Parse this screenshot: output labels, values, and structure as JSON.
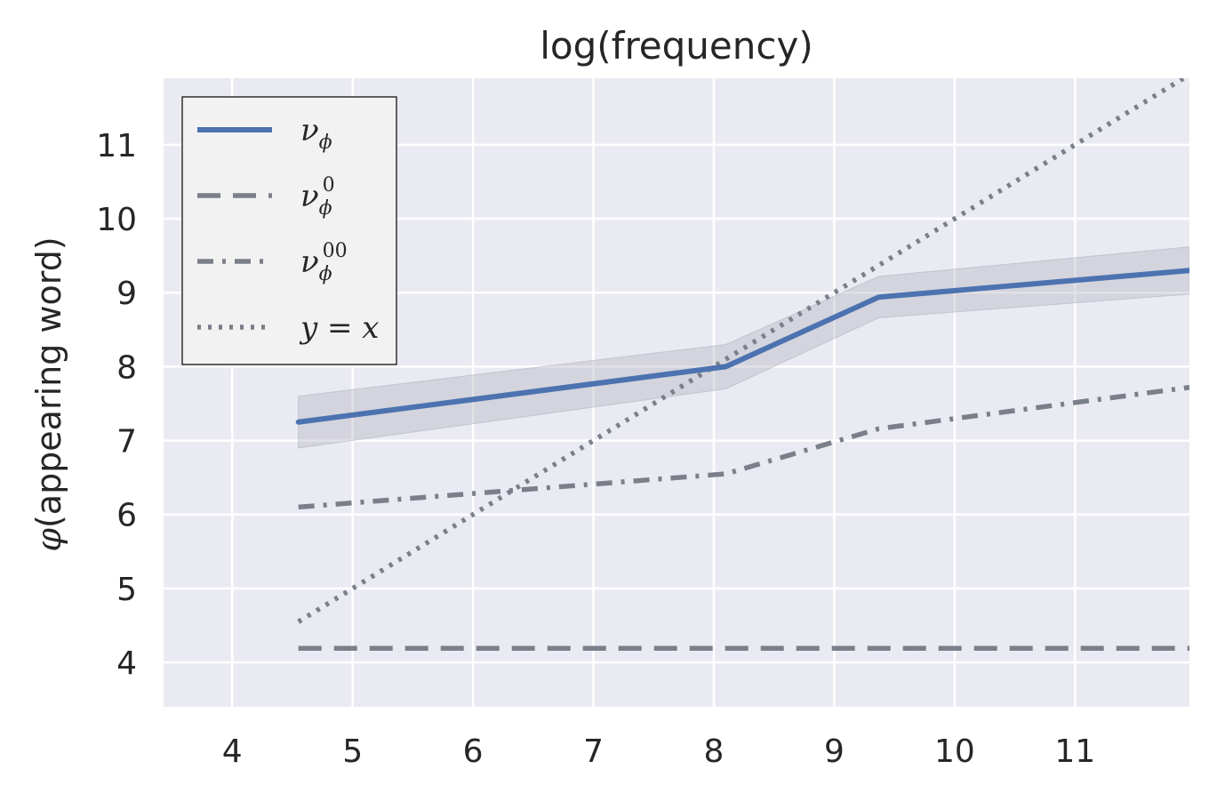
{
  "chart_data": {
    "type": "line",
    "title": "log(frequency)",
    "xlabel": "",
    "ylabel": "(appearing word)",
    "ylabel_symbol": "φ",
    "xlim": [
      3.43,
      11.95
    ],
    "ylim": [
      3.4,
      11.9
    ],
    "x_ticks": [
      "4",
      "5",
      "6",
      "7",
      "8",
      "9",
      "10",
      "11"
    ],
    "y_ticks": [
      "4",
      "5",
      "6",
      "7",
      "8",
      "9",
      "10",
      "11"
    ],
    "grid": true,
    "legend_position": "top-left",
    "colors": {
      "background": "#eaeaf2",
      "grid": "#ffffff",
      "primary": "#4c72b0",
      "secondary": "#7a7f89",
      "band": "#a9adb8"
    },
    "series": [
      {
        "key": "nu_phi",
        "legend": {
          "base": "ν",
          "sub": "ϕ",
          "sup": ""
        },
        "style": "solid",
        "x": [
          4.55,
          8.1,
          9.37,
          11.95
        ],
        "y": [
          7.25,
          8.0,
          8.94,
          9.3
        ],
        "band_upper": [
          7.6,
          8.3,
          9.22,
          9.62
        ],
        "band_lower": [
          6.9,
          7.7,
          8.66,
          8.98
        ]
      },
      {
        "key": "nu_phi_0",
        "legend": {
          "base": "ν",
          "sub": "ϕ",
          "sup": "0"
        },
        "style": "dashed",
        "x": [
          4.55,
          8.1,
          9.37,
          11.95
        ],
        "y": [
          4.19,
          4.19,
          4.19,
          4.19
        ]
      },
      {
        "key": "nu_phi_00",
        "legend": {
          "base": "ν",
          "sub": "ϕ",
          "sup": "00"
        },
        "style": "dashdot",
        "x": [
          4.55,
          8.1,
          9.37,
          11.95
        ],
        "y": [
          6.1,
          6.55,
          7.16,
          7.72
        ]
      },
      {
        "key": "y_eq_x",
        "legend": {
          "base": "y = x",
          "sub": "",
          "sup": ""
        },
        "style": "dotted",
        "x": [
          4.55,
          11.95
        ],
        "y": [
          4.55,
          11.95
        ]
      }
    ]
  }
}
